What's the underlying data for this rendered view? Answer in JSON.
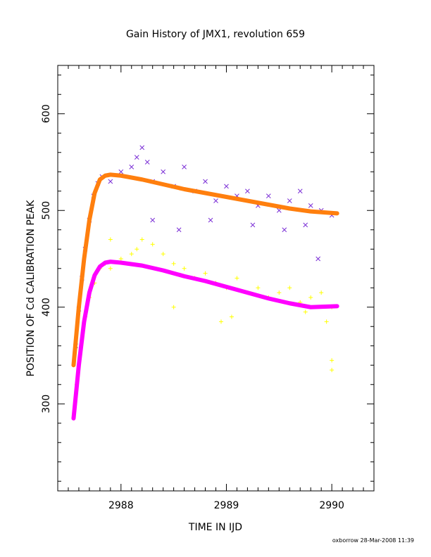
{
  "chart_data": {
    "type": "scatter",
    "title": "Gain History of JMX1, revolution 659",
    "xlabel": "TIME IN IJD",
    "ylabel": "POSITION OF Cd CALIBRATION PEAK",
    "xlim": [
      2987.4,
      2990.4
    ],
    "ylim": [
      210,
      650
    ],
    "xticks": [
      2988,
      2989,
      2990
    ],
    "yticks": [
      300,
      400,
      500,
      600
    ],
    "legend": "none",
    "grid": false,
    "series": [
      {
        "color": "#7b2fd6",
        "marker": "x",
        "points": [
          [
            2987.57,
            360
          ],
          [
            2987.6,
            398
          ],
          [
            2987.63,
            430
          ],
          [
            2987.66,
            460
          ],
          [
            2987.7,
            490
          ],
          [
            2987.74,
            515
          ],
          [
            2987.78,
            528
          ],
          [
            2987.82,
            535
          ],
          [
            2987.9,
            530
          ],
          [
            2988.0,
            540
          ],
          [
            2988.1,
            545
          ],
          [
            2988.15,
            555
          ],
          [
            2988.2,
            565
          ],
          [
            2988.25,
            550
          ],
          [
            2988.3,
            530
          ],
          [
            2988.4,
            540
          ],
          [
            2988.5,
            525
          ],
          [
            2988.6,
            545
          ],
          [
            2988.7,
            520
          ],
          [
            2988.8,
            530
          ],
          [
            2988.9,
            510
          ],
          [
            2989.0,
            525
          ],
          [
            2989.1,
            515
          ],
          [
            2989.2,
            520
          ],
          [
            2989.3,
            505
          ],
          [
            2989.4,
            515
          ],
          [
            2989.5,
            500
          ],
          [
            2989.6,
            510
          ],
          [
            2989.7,
            520
          ],
          [
            2989.8,
            505
          ],
          [
            2989.9,
            500
          ],
          [
            2990.0,
            495
          ],
          [
            2988.3,
            490
          ],
          [
            2988.55,
            480
          ],
          [
            2988.85,
            490
          ],
          [
            2989.25,
            485
          ],
          [
            2989.55,
            480
          ],
          [
            2989.75,
            485
          ],
          [
            2989.87,
            450
          ]
        ]
      },
      {
        "color": "#ff7f0e",
        "marker": "line",
        "x": [
          2987.55,
          2987.6,
          2987.65,
          2987.7,
          2987.75,
          2987.8,
          2987.85,
          2987.9,
          2988.0,
          2988.2,
          2988.4,
          2988.6,
          2988.8,
          2989.0,
          2989.2,
          2989.4,
          2989.6,
          2989.8,
          2990.05
        ],
        "y": [
          340,
          400,
          450,
          490,
          518,
          532,
          536,
          537,
          536,
          532,
          527,
          522,
          518,
          514,
          510,
          506,
          502,
          499,
          497
        ]
      },
      {
        "color": "#ffff00",
        "marker": "+",
        "points": [
          [
            2987.58,
            320
          ],
          [
            2987.62,
            360
          ],
          [
            2987.66,
            390
          ],
          [
            2987.7,
            410
          ],
          [
            2987.75,
            425
          ],
          [
            2987.8,
            440
          ],
          [
            2987.85,
            445
          ],
          [
            2987.9,
            440
          ],
          [
            2988.0,
            450
          ],
          [
            2988.1,
            455
          ],
          [
            2988.15,
            460
          ],
          [
            2988.2,
            470
          ],
          [
            2988.3,
            465
          ],
          [
            2988.4,
            455
          ],
          [
            2988.5,
            445
          ],
          [
            2988.6,
            440
          ],
          [
            2988.7,
            430
          ],
          [
            2988.8,
            435
          ],
          [
            2988.9,
            425
          ],
          [
            2989.0,
            420
          ],
          [
            2989.1,
            430
          ],
          [
            2989.2,
            415
          ],
          [
            2989.3,
            420
          ],
          [
            2989.4,
            410
          ],
          [
            2989.5,
            415
          ],
          [
            2989.6,
            420
          ],
          [
            2989.7,
            405
          ],
          [
            2989.8,
            410
          ],
          [
            2989.9,
            415
          ],
          [
            2990.0,
            400
          ],
          [
            2988.5,
            400
          ],
          [
            2988.95,
            385
          ],
          [
            2989.05,
            390
          ],
          [
            2989.75,
            395
          ],
          [
            2989.95,
            385
          ],
          [
            2990.0,
            345
          ],
          [
            2990.0,
            335
          ],
          [
            2987.9,
            470
          ]
        ]
      },
      {
        "color": "#ff00ff",
        "marker": "line",
        "x": [
          2987.55,
          2987.6,
          2987.65,
          2987.7,
          2987.75,
          2987.8,
          2987.85,
          2987.9,
          2988.0,
          2988.2,
          2988.4,
          2988.6,
          2988.8,
          2989.0,
          2989.2,
          2989.4,
          2989.6,
          2989.8,
          2990.05
        ],
        "y": [
          285,
          340,
          385,
          415,
          433,
          442,
          446,
          447,
          446,
          443,
          438,
          432,
          427,
          421,
          415,
          409,
          404,
          400,
          401
        ]
      }
    ]
  },
  "footer": "oxborrow 28-Mar-2008 11:39"
}
